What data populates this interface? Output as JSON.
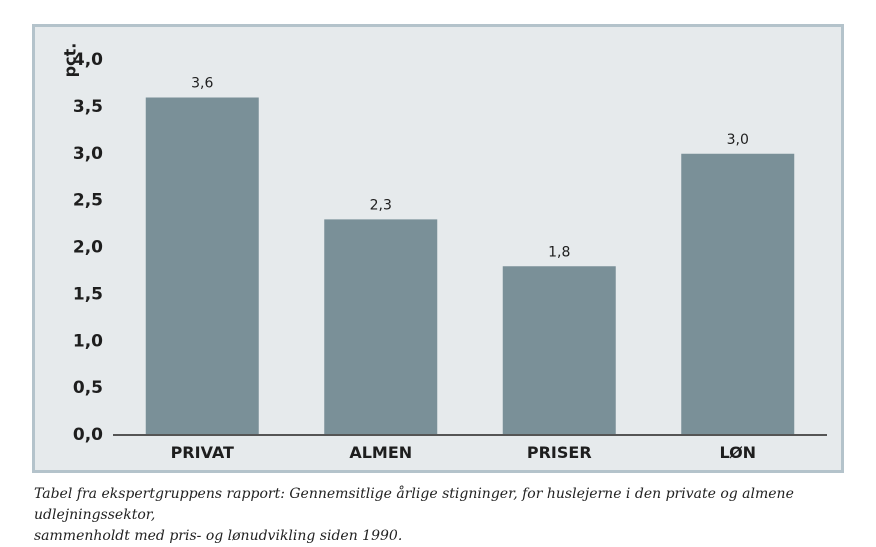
{
  "chart_data": {
    "type": "bar",
    "categories": [
      "PRIVAT",
      "ALMEN",
      "PRISER",
      "LØN"
    ],
    "values": [
      3.6,
      2.3,
      1.8,
      3.0
    ],
    "value_labels": [
      "3,6",
      "2,3",
      "1,8",
      "3,0"
    ],
    "yticks": [
      "0,0",
      "0,5",
      "1,0",
      "1,5",
      "2,0",
      "2,5",
      "3,0",
      "3,5",
      "4,0"
    ],
    "ylim": [
      0,
      4.0
    ],
    "ylabel": "pct.",
    "xlabel": "",
    "title": "",
    "grid": false,
    "legend": "none",
    "colors": {
      "bar": "#7a9098",
      "plot_background": "#e6eaec",
      "frame_border": "#b4c3cb",
      "axis": "#555555"
    }
  },
  "caption": {
    "line1": "Tabel fra ekspertgruppens rapport: Gennemsitlige årlige stigninger, for huslejerne i den private og almene udlejningssektor,",
    "line2": "sammenholdt  med pris- og lønudvikling siden 1990."
  }
}
